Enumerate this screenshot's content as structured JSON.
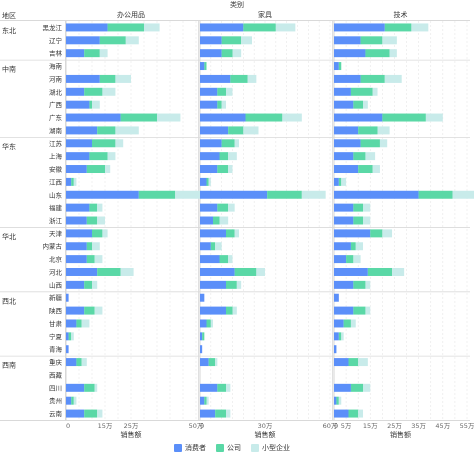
{
  "chart_data": {
    "type": "bar",
    "orientation": "horizontal",
    "stacked": true,
    "col_field_title": "类别",
    "row_field_title": "地区",
    "columns": [
      "办公用品",
      "家具",
      "技术"
    ],
    "xlabel": "销售额",
    "x_ticks": [
      [
        "0",
        "5万",
        "10万",
        "15万",
        "20万",
        "25万",
        "30万",
        "35万",
        "40万",
        "45万",
        "50万"
      ],
      [
        "0",
        "5万",
        "10万",
        "15万",
        "20万",
        "25万",
        "30万",
        "35万",
        "40万",
        "45万",
        "50万",
        "55万",
        "60万"
      ],
      [
        "0",
        "5万",
        "10万",
        "15万",
        "20万",
        "25万",
        "30万",
        "35万",
        "40万",
        "45万",
        "50万",
        "55万"
      ]
    ],
    "x_tick_labels_shown": [
      [
        "0",
        "",
        "",
        "15万",
        "",
        "25万",
        "",
        "",
        "",
        "",
        "50万"
      ],
      [
        "0",
        "",
        "",
        "",
        "",
        "",
        "30万",
        "",
        "",
        "",
        "",
        "",
        "60万"
      ],
      [
        "0",
        "5万",
        "",
        "15万",
        "",
        "25万",
        "",
        "35万",
        "",
        "45万",
        "",
        "55万"
      ]
    ],
    "x_max": [
      50,
      60,
      55
    ],
    "unit": "万",
    "series": [
      {
        "name": "消费者",
        "color": "#5B8FF9"
      },
      {
        "name": "公司",
        "color": "#5AD8A6"
      },
      {
        "name": "小型企业",
        "color": "#C8EBEA"
      }
    ],
    "groups": [
      {
        "region": "东北",
        "provinces": [
          {
            "name": "黑龙江",
            "values": [
              [
                16,
                14,
                6
              ],
              [
                20,
                15,
                9
              ],
              [
                21,
                11,
                7
              ]
            ]
          },
          {
            "name": "辽宁",
            "values": [
              [
                13,
                10,
                5
              ],
              [
                10,
                9,
                5
              ],
              [
                11,
                9,
                6
              ]
            ]
          },
          {
            "name": "吉林",
            "values": [
              [
                7,
                6,
                3
              ],
              [
                10,
                5,
                4
              ],
              [
                13,
                10,
                3
              ]
            ]
          }
        ]
      },
      {
        "region": "中南",
        "provinces": [
          {
            "name": "海南",
            "values": [
              [
                0,
                0,
                0
              ],
              [
                2,
                1,
                0
              ],
              [
                2,
                1,
                0
              ]
            ]
          },
          {
            "name": "河南",
            "values": [
              [
                13,
                6,
                6
              ],
              [
                14,
                8,
                4
              ],
              [
                11,
                10,
                7
              ]
            ]
          },
          {
            "name": "湖北",
            "values": [
              [
                7,
                7,
                5
              ],
              [
                8,
                4,
                3
              ],
              [
                7,
                9,
                2
              ]
            ]
          },
          {
            "name": "广西",
            "values": [
              [
                9,
                1,
                3
              ],
              [
                8,
                2,
                2
              ],
              [
                8,
                4,
                2
              ]
            ]
          },
          {
            "name": "广东",
            "values": [
              [
                21,
                14,
                9
              ],
              [
                21,
                17,
                9
              ],
              [
                20,
                18,
                7
              ]
            ]
          },
          {
            "name": "湖南",
            "values": [
              [
                12,
                7,
                9
              ],
              [
                13,
                7,
                7
              ],
              [
                10,
                8,
                5
              ]
            ]
          }
        ]
      },
      {
        "region": "华东",
        "provinces": [
          {
            "name": "江苏",
            "values": [
              [
                10,
                9,
                3
              ],
              [
                10,
                6,
                2
              ],
              [
                11,
                8,
                3
              ]
            ]
          },
          {
            "name": "上海",
            "values": [
              [
                9,
                7,
                3
              ],
              [
                9,
                4,
                4
              ],
              [
                8,
                5,
                4
              ]
            ]
          },
          {
            "name": "安徽",
            "values": [
              [
                8,
                7,
                2
              ],
              [
                8,
                5,
                2
              ],
              [
                10,
                6,
                3
              ]
            ]
          },
          {
            "name": "江西",
            "values": [
              [
                2,
                1,
                1
              ],
              [
                3,
                1,
                1
              ],
              [
                2,
                1,
                2
              ]
            ]
          },
          {
            "name": "山东",
            "values": [
              [
                28,
                14,
                10
              ],
              [
                31,
                16,
                11
              ],
              [
                35,
                14,
                13
              ]
            ]
          },
          {
            "name": "福建",
            "values": [
              [
                9,
                3,
                2
              ],
              [
                8,
                5,
                3
              ],
              [
                8,
                4,
                3
              ]
            ]
          },
          {
            "name": "浙江",
            "values": [
              [
                8,
                4,
                3
              ],
              [
                6,
                3,
                4
              ],
              [
                8,
                4,
                3
              ]
            ]
          }
        ]
      },
      {
        "region": "华北",
        "provinces": [
          {
            "name": "天津",
            "values": [
              [
                10,
                4,
                2
              ],
              [
                12,
                4,
                2
              ],
              [
                15,
                5,
                4
              ]
            ]
          },
          {
            "name": "内蒙古",
            "values": [
              [
                8,
                2,
                3
              ],
              [
                5,
                2,
                3
              ],
              [
                7,
                2,
                3
              ]
            ]
          },
          {
            "name": "北京",
            "values": [
              [
                8,
                3,
                3
              ],
              [
                9,
                4,
                2
              ],
              [
                5,
                3,
                3
              ]
            ]
          },
          {
            "name": "河北",
            "values": [
              [
                12,
                9,
                5
              ],
              [
                16,
                10,
                4
              ],
              [
                14,
                10,
                5
              ]
            ]
          },
          {
            "name": "山西",
            "values": [
              [
                7,
                3,
                2
              ],
              [
                12,
                5,
                2
              ],
              [
                8,
                5,
                2
              ]
            ]
          }
        ]
      },
      {
        "region": "西北",
        "provinces": [
          {
            "name": "新疆",
            "values": [
              [
                1,
                0,
                0
              ],
              [
                2,
                0,
                0
              ],
              [
                2,
                0,
                0
              ]
            ]
          },
          {
            "name": "陕西",
            "values": [
              [
                7,
                4,
                3
              ],
              [
                12,
                3,
                2
              ],
              [
                8,
                5,
                2
              ]
            ]
          },
          {
            "name": "甘肃",
            "values": [
              [
                4,
                2,
                3
              ],
              [
                3,
                2,
                1
              ],
              [
                4,
                3,
                2
              ]
            ]
          },
          {
            "name": "宁夏",
            "values": [
              [
                1,
                1,
                1
              ],
              [
                1,
                1,
                0
              ],
              [
                2,
                1,
                1
              ]
            ]
          },
          {
            "name": "青海",
            "values": [
              [
                1,
                0,
                0
              ],
              [
                1,
                0,
                0
              ],
              [
                1,
                0,
                0
              ]
            ]
          }
        ]
      },
      {
        "region": "西南",
        "provinces": [
          {
            "name": "重庆",
            "values": [
              [
                4,
                2,
                2
              ],
              [
                4,
                3,
                1
              ],
              [
                6,
                4,
                4
              ]
            ]
          },
          {
            "name": "西藏",
            "values": [
              [
                0,
                0,
                0
              ],
              [
                0,
                0,
                0
              ],
              [
                0,
                0,
                0
              ]
            ]
          },
          {
            "name": "四川",
            "values": [
              [
                7,
                4,
                1
              ],
              [
                8,
                4,
                2
              ],
              [
                7,
                5,
                3
              ]
            ]
          },
          {
            "name": "贵州",
            "values": [
              [
                2,
                1,
                1
              ],
              [
                2,
                1,
                1
              ],
              [
                1,
                1,
                1
              ]
            ]
          },
          {
            "name": "云南",
            "values": [
              [
                7,
                5,
                2
              ],
              [
                7,
                5,
                2
              ],
              [
                6,
                4,
                2
              ]
            ]
          }
        ]
      }
    ]
  }
}
